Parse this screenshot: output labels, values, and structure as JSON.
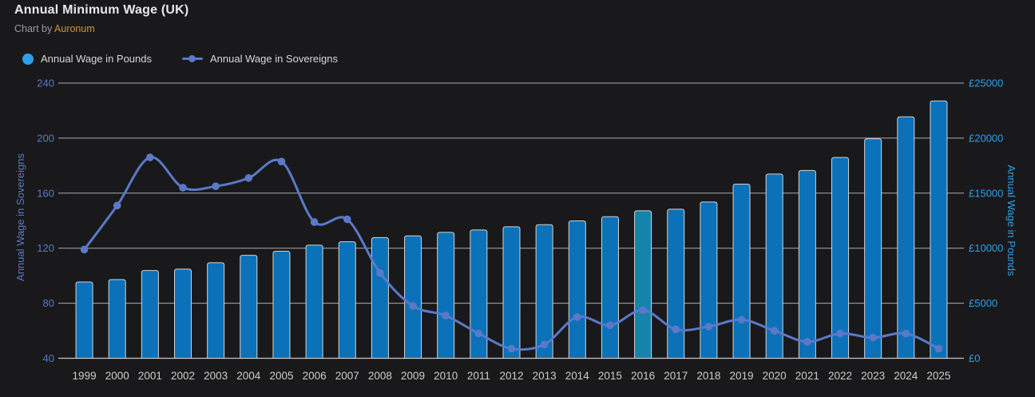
{
  "header": {
    "title": "Annual Minimum Wage (UK)",
    "subtitle_prefix": "Chart by ",
    "subtitle_brand": "Auronum"
  },
  "legend": [
    {
      "label": "Annual Wage in Pounds",
      "icon": "circle-swatch",
      "color": "#2d9fe9"
    },
    {
      "label": "Annual Wage in Sovereigns",
      "icon": "line-marker-swatch",
      "color": "#5b79c8"
    }
  ],
  "colors": {
    "background": "#19191b",
    "title": "#e9e9e9",
    "subtitle": "#9b9b9b",
    "brand_gold": "#c8963e",
    "bar_fill": "#0b71b8",
    "bar_highlight_fill": "#1583ab",
    "bar_stroke": "#d4d4d4",
    "line": "#5b79c8",
    "grid": "#c6c6c6",
    "x_label": "#cfccc4",
    "left_axis": "#5b79c8",
    "right_axis": "#2da0e9"
  },
  "chart_data": {
    "type": "combo-bar-line",
    "title": "Annual Minimum Wage (UK)",
    "categories": [
      "1999",
      "2000",
      "2001",
      "2002",
      "2003",
      "2004",
      "2005",
      "2006",
      "2007",
      "2008",
      "2009",
      "2010",
      "2011",
      "2012",
      "2013",
      "2014",
      "2015",
      "2016",
      "2017",
      "2018",
      "2019",
      "2020",
      "2021",
      "2022",
      "2023",
      "2024",
      "2025"
    ],
    "series": [
      {
        "name": "Annual Wage in Pounds",
        "type": "bar",
        "axis": "right",
        "values": [
          6930,
          7150,
          7970,
          8100,
          8680,
          9350,
          9720,
          10280,
          10590,
          10970,
          11120,
          11440,
          11660,
          11950,
          12140,
          12480,
          12860,
          13400,
          13540,
          14200,
          15820,
          16740,
          17060,
          18240,
          19940,
          21930,
          23380
        ]
      },
      {
        "name": "Annual Wage in Sovereigns",
        "type": "line",
        "axis": "left",
        "values": [
          119,
          151,
          186,
          164,
          165,
          171,
          183,
          139,
          141,
          102,
          78,
          71,
          58,
          47,
          50,
          70,
          64,
          75,
          61,
          63,
          68,
          60,
          52,
          58,
          55,
          58,
          47
        ]
      }
    ],
    "highlight_category": "2016",
    "left_axis": {
      "title": "Annual Wage in Sovereigns",
      "min": 40,
      "max": 240,
      "ticks": [
        40,
        80,
        120,
        160,
        200,
        240
      ]
    },
    "right_axis": {
      "title": "Annual Wage in Pounds",
      "min": 0,
      "max": 25000,
      "ticks": [
        0,
        5000,
        10000,
        15000,
        20000,
        25000
      ],
      "tick_labels": [
        "£0",
        "£5000",
        "£10000",
        "£15000",
        "£20000",
        "£25000"
      ]
    },
    "grid": true,
    "legend_position": "top-left"
  }
}
